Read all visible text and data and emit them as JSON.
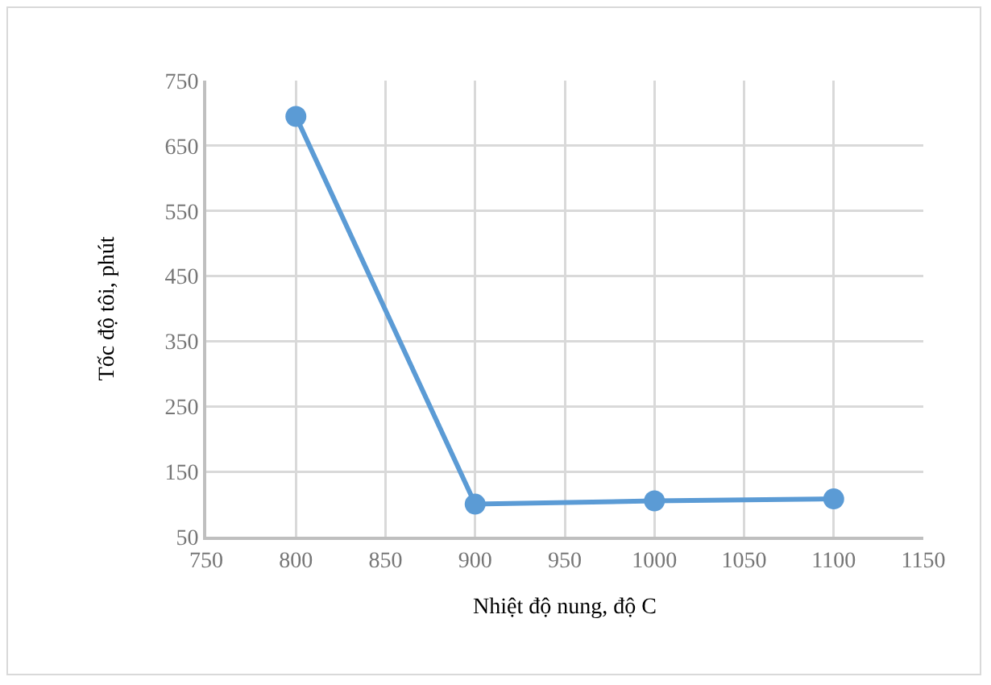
{
  "chart_data": {
    "type": "line",
    "xlabel": "Nhiệt độ nung, độ C",
    "ylabel": "Tốc độ tôi, phút",
    "x": [
      800,
      900,
      1000,
      1100
    ],
    "series": [
      {
        "color": "#5b9bd5",
        "values": [
          695,
          100,
          105,
          108
        ]
      }
    ],
    "xlim": [
      750,
      1150
    ],
    "xticks": [
      750,
      800,
      850,
      900,
      950,
      1000,
      1050,
      1100,
      1150
    ],
    "ylim": [
      50,
      750
    ],
    "yticks": [
      50,
      150,
      250,
      350,
      450,
      550,
      650,
      750
    ],
    "grid": true,
    "legend": false,
    "marker": "circle",
    "line_style": "solid"
  }
}
